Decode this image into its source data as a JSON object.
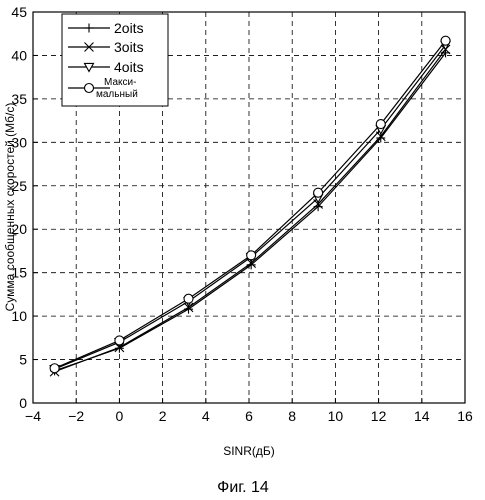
{
  "chart_data": {
    "type": "line",
    "xlabel": "SINR(дБ)",
    "ylabel": "Сумма сообщенных скоростей (Мб/с)",
    "caption": "Фиг. 14",
    "xlim": [
      -4,
      16
    ],
    "ylim": [
      0,
      45
    ],
    "xticks": [
      -4,
      -2,
      0,
      2,
      4,
      6,
      8,
      10,
      12,
      14,
      16
    ],
    "yticks": [
      0,
      5,
      10,
      15,
      20,
      25,
      30,
      35,
      40,
      45
    ],
    "x_tick_labels": [
      "−4",
      "−2",
      "0",
      "2",
      "4",
      "6",
      "8",
      "10",
      "12",
      "14",
      "16"
    ],
    "y_tick_labels": [
      "0",
      "5",
      "10",
      "15",
      "20",
      "25",
      "30",
      "35",
      "40",
      "45"
    ],
    "grid": true,
    "grid_style": "dashed",
    "legend_position": "top-left",
    "x": [
      -3,
      0,
      3.2,
      6.1,
      9.2,
      12.1,
      15.1
    ],
    "series": [
      {
        "name": "2oits",
        "marker": "plus",
        "values": [
          3.7,
          6.3,
          10.8,
          15.9,
          22.6,
          30.5,
          40.3
        ]
      },
      {
        "name": "3oits",
        "marker": "x",
        "values": [
          3.6,
          6.4,
          11.0,
          16.1,
          22.9,
          30.7,
          40.7
        ]
      },
      {
        "name": "4oits",
        "marker": "triangle-down",
        "values": [
          3.9,
          7.0,
          11.7,
          16.8,
          23.6,
          31.5,
          41.2
        ]
      },
      {
        "name_lines": [
          "Макси-",
          "мальный"
        ],
        "marker": "circle",
        "values": [
          4.0,
          7.2,
          12.0,
          17.0,
          24.2,
          32.1,
          41.7
        ]
      }
    ]
  }
}
